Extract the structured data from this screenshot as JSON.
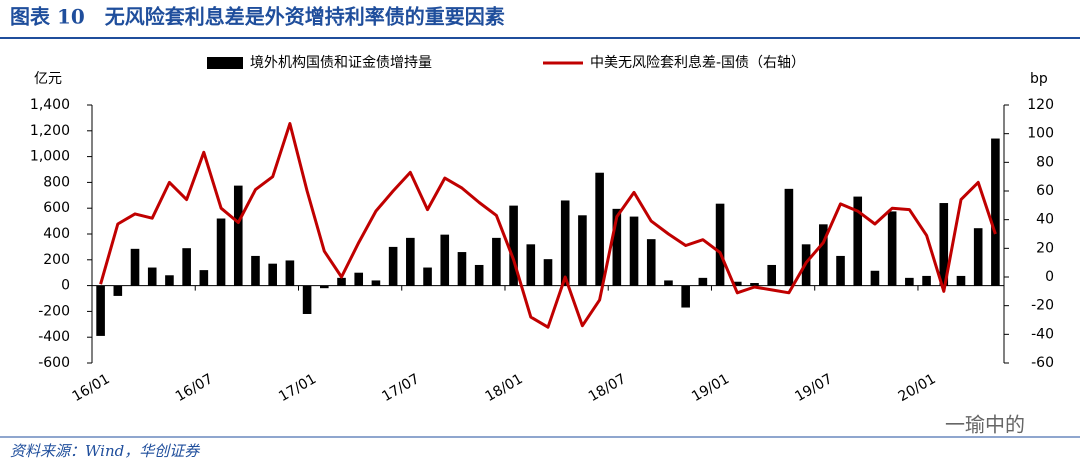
{
  "header": {
    "title": "图表 10　无风险套利息差是外资增持利率债的重要因素"
  },
  "chart_data": {
    "type": "bar-line",
    "y_label": "亿元",
    "y2_label": "bp",
    "categories": [
      "16/01",
      null,
      null,
      null,
      null,
      null,
      "16/07",
      null,
      null,
      null,
      null,
      null,
      "17/01",
      null,
      null,
      null,
      null,
      null,
      "17/07",
      null,
      null,
      null,
      null,
      null,
      "18/01",
      null,
      null,
      null,
      null,
      null,
      "18/07",
      null,
      null,
      null,
      null,
      null,
      "19/01",
      null,
      null,
      null,
      null,
      null,
      "19/07",
      null,
      null,
      null,
      null,
      null,
      "20/01",
      null,
      null,
      null,
      null
    ],
    "series": [
      {
        "name": "境外机构国债和证金债增持量",
        "type": "bar",
        "color": "#000000",
        "values": [
          -390,
          -80,
          285,
          140,
          80,
          290,
          120,
          520,
          775,
          230,
          170,
          195,
          -220,
          -20,
          60,
          100,
          40,
          300,
          370,
          140,
          395,
          260,
          160,
          370,
          620,
          320,
          205,
          660,
          545,
          875,
          595,
          535,
          360,
          40,
          -170,
          60,
          635,
          30,
          20,
          160,
          750,
          320,
          475,
          230,
          690,
          115,
          575,
          60,
          75,
          640,
          75,
          445,
          1140
        ]
      },
      {
        "name": "中美无风险套利息差-国债（右轴）",
        "type": "line",
        "axis": "y2",
        "color": "#c00000",
        "values": [
          -5,
          37,
          44,
          41,
          66,
          54,
          87,
          48,
          38,
          61,
          70,
          107,
          60,
          18,
          0,
          24,
          46,
          60,
          73,
          47,
          69,
          62,
          52,
          43,
          12,
          -28,
          -35,
          0,
          -34,
          -16,
          42,
          59,
          39,
          30,
          22,
          26,
          17,
          -11,
          -7,
          -9,
          -11,
          10,
          24,
          51,
          46,
          37,
          48,
          47,
          29,
          -10,
          54,
          66,
          30
        ]
      }
    ],
    "ylim": [
      -600,
      1400
    ],
    "yticks": [
      -600,
      -400,
      -200,
      0,
      200,
      400,
      600,
      800,
      {
        "value": 1000,
        "label": "1,000"
      },
      {
        "value": 1200,
        "label": "1,200"
      },
      {
        "value": 1400,
        "label": "1,400"
      }
    ],
    "y2lim": [
      -60,
      120
    ],
    "y2ticks": [
      -60,
      -40,
      -20,
      0,
      20,
      40,
      60,
      80,
      100,
      120
    ]
  },
  "footer": {
    "source": "资料来源：Wind，华创证券",
    "watermark": "一瑜中的"
  }
}
